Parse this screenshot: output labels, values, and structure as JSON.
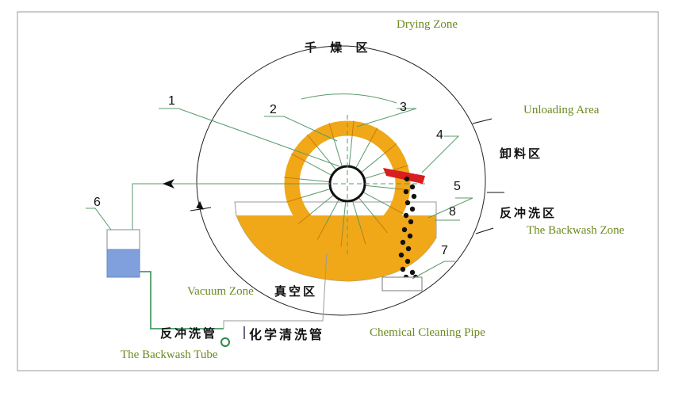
{
  "labels": {
    "drying_zone_en": "Drying Zone",
    "drying_zone_cn": "千 燥 区",
    "unloading_en": "Unloading Area",
    "unloading_cn": "卸料区",
    "backwash_zone_cn": "反冲洗区",
    "backwash_zone_en": "The Backwash Zone",
    "vacuum_zone_en": "Vacuum Zone",
    "vacuum_zone_cn": "真空区",
    "backwash_tube_cn": "反冲洗管",
    "backwash_tube_en": "The Backwash Tube",
    "chemical_pipe_cn": "化学清洗管",
    "chemical_pipe_en": "Chemical Cleaning Pipe"
  },
  "numbers": [
    "1",
    "2",
    "3",
    "4",
    "5",
    "6",
    "7",
    "8"
  ],
  "colors": {
    "filter": "#f0a818",
    "scraper": "#d81e1e",
    "line": "#5a9a6a",
    "liquid": "#7fa0dc",
    "label_en": "#6b8a1e"
  }
}
